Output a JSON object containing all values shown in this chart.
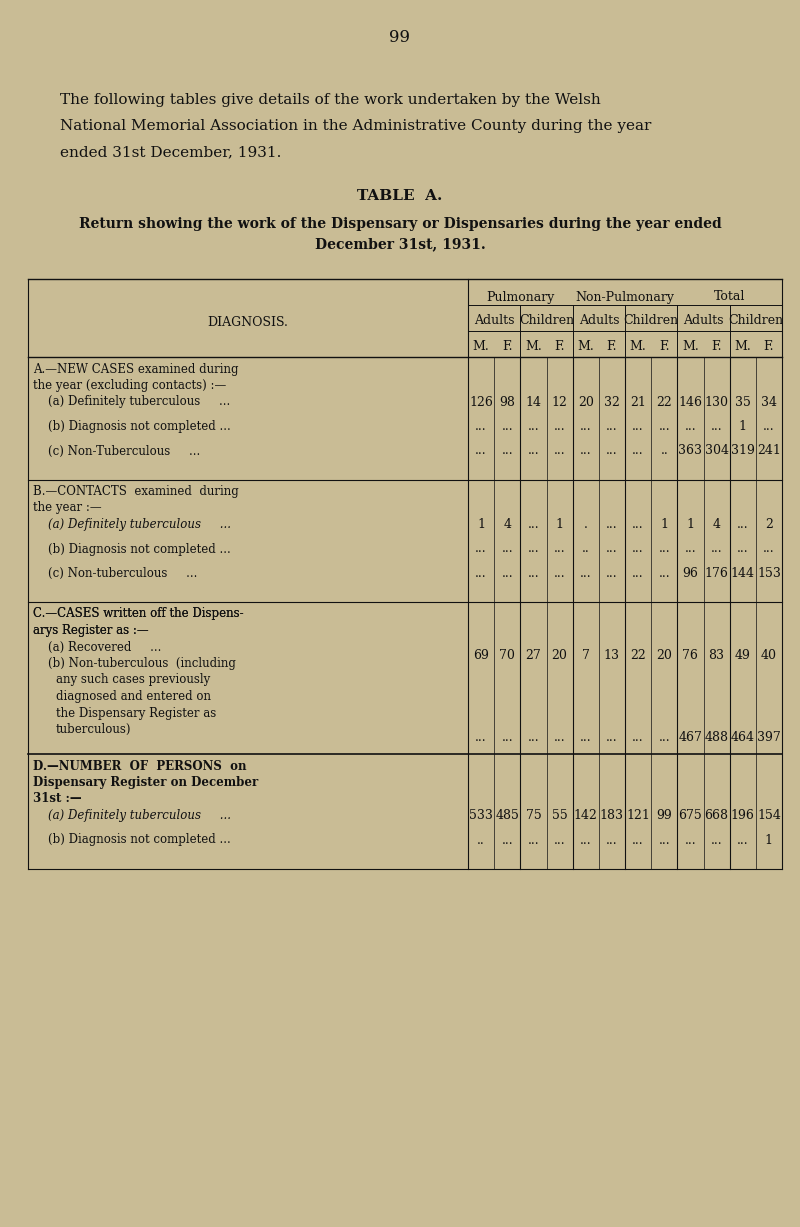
{
  "page_number": "99",
  "bg_color": "#c9bc95",
  "text_color": "#111111",
  "intro_lines": [
    "The following tables give details of the work undertaken by the Welsh",
    "National Memorial Association in the Administrative County during the year",
    "ended 31st December, 1931."
  ],
  "table_title": "TABLE  A.",
  "subtitle_lines": [
    "Return showing the work of the Dispensary or Dispensaries during the year ended",
    "December 31st, 1931."
  ],
  "diagnosis_label": "DIAGNOSIS.",
  "col_group_labels": [
    "Pulmonary",
    "Non-Pulmonary",
    "Total"
  ],
  "sub_headers": [
    "Adults",
    "Children",
    "Adults",
    "Children",
    "Adults",
    "Children"
  ],
  "mf_headers": [
    "M.",
    "F.",
    "M.",
    "F.",
    "M.",
    "F.",
    "M.",
    "F.",
    "M.",
    "F.",
    "M.",
    "F."
  ],
  "sections": [
    {
      "header_lines": [
        "A.—NEW CASES examined during",
        "the year (excluding contacts) :—"
      ],
      "rows": [
        {
          "label_lines": [
            "(a) Definitely tuberculous     ..."
          ],
          "italic": false,
          "values": [
            "126",
            "98",
            "14",
            "12",
            "20",
            "32",
            "21",
            "22",
            "146",
            "130",
            "35",
            "34"
          ]
        },
        {
          "label_lines": [
            "(b) Diagnosis not completed ..."
          ],
          "italic": false,
          "values": [
            "...",
            "...",
            "...",
            "...",
            "...",
            "...",
            "...",
            "...",
            "...",
            "...",
            "1",
            "..."
          ]
        },
        {
          "label_lines": [
            "(c) Non-Tuberculous     ..."
          ],
          "italic": false,
          "values": [
            "...",
            "...",
            "...",
            "...",
            "...",
            "...",
            "...",
            "..",
            "363",
            "304",
            "319",
            "241"
          ]
        }
      ]
    },
    {
      "header_lines": [
        "B.—CONTACTS  examined  during",
        "the year :—"
      ],
      "rows": [
        {
          "label_lines": [
            "(a) Definitely tuberculous     ..."
          ],
          "italic": true,
          "values": [
            "1",
            "4",
            "...",
            "1",
            ".",
            "...",
            "...",
            "1",
            "1",
            "4",
            "...",
            "2"
          ]
        },
        {
          "label_lines": [
            "(b) Diagnosis not completed ..."
          ],
          "italic": false,
          "values": [
            "...",
            "...",
            "...",
            "...",
            "..",
            "...",
            "...",
            "...",
            "...",
            "...",
            "...",
            "..."
          ]
        },
        {
          "label_lines": [
            "(c) Non-tuberculous     ..."
          ],
          "italic": false,
          "values": [
            "...",
            "...",
            "...",
            "...",
            "...",
            "...",
            "...",
            "...",
            "96",
            "176",
            "144",
            "153"
          ]
        }
      ]
    },
    {
      "header_lines": [
        "C.—CASES written off the Dispens-",
        "arys Register as :—"
      ],
      "rows": [
        {
          "label_lines": [
            "(a) Recovered     ...",
            "(b) Non-tuberculous  (including"
          ],
          "italic": false,
          "values": [
            "69",
            "70",
            "27",
            "20",
            "7",
            "13",
            "22",
            "20",
            "76",
            "83",
            "49",
            "40"
          ]
        },
        {
          "label_lines": [
            "any such cases previously",
            "diagnosed and entered on",
            "the Dispensary Register as",
            "tuberculous)"
          ],
          "italic": false,
          "values": [
            "...",
            "...",
            "...",
            "...",
            "...",
            "...",
            "...",
            "...",
            "467",
            "488",
            "464",
            "397"
          ]
        }
      ]
    },
    {
      "header_lines": [
        "D.—NUMBER  OF  PERSONS  on",
        "Dispensary Register on December",
        "31st :—"
      ],
      "bold_header": true,
      "rows": [
        {
          "label_lines": [
            "(a) Definitely tuberculous     ..."
          ],
          "italic": true,
          "values": [
            "533",
            "485",
            "75",
            "55",
            "142",
            "183",
            "121",
            "99",
            "675",
            "668",
            "196",
            "154"
          ]
        },
        {
          "label_lines": [
            "(b) Diagnosis not completed ..."
          ],
          "italic": false,
          "values": [
            "..",
            "...",
            "...",
            "...",
            "...",
            "...",
            "...",
            "...",
            "...",
            "...",
            "...",
            "1"
          ]
        }
      ]
    }
  ]
}
